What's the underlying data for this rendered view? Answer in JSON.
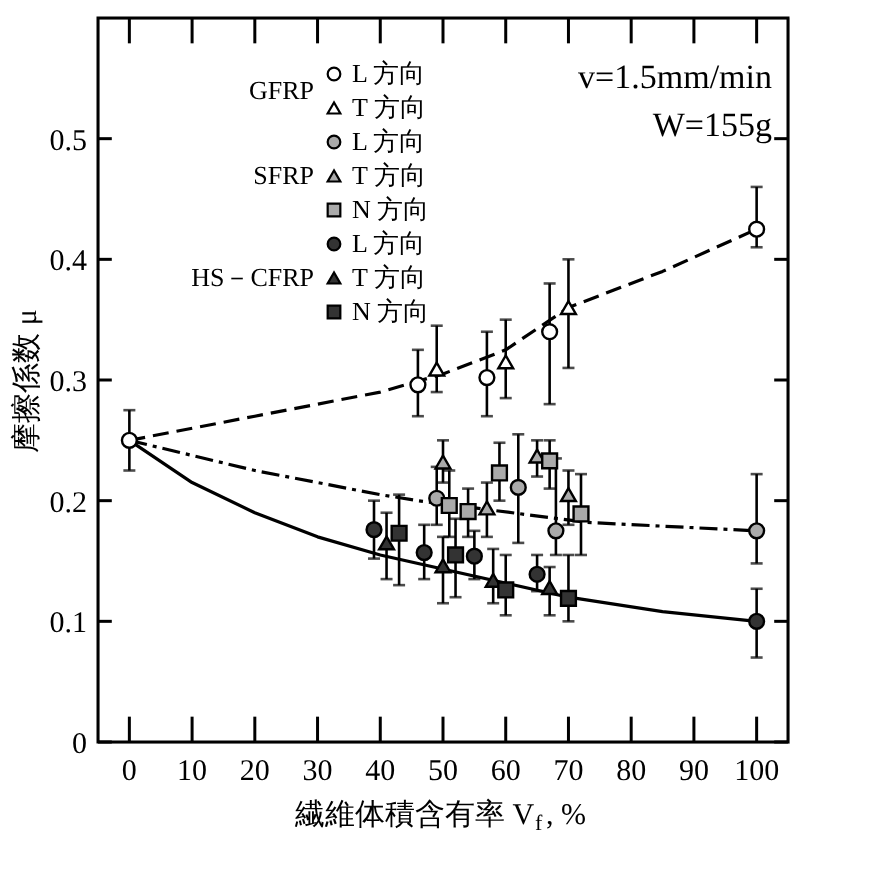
{
  "chart_data": {
    "type": "scatter",
    "xlabel": "繊維体積含有率 V$_{f}$, %",
    "ylabel": "摩擦係数 μ",
    "xlim": [
      -5,
      105
    ],
    "ylim": [
      0,
      0.6
    ],
    "xticks": [
      0,
      10,
      20,
      30,
      40,
      50,
      60,
      70,
      80,
      90,
      100
    ],
    "yticks": [
      0,
      0.1,
      0.2,
      0.3,
      0.4,
      0.5
    ],
    "grid": false,
    "legend": "top left",
    "annotations": [
      "GFRP",
      "SFRP",
      "HS－CFRP",
      "v=1.5mm/min",
      "W=155g"
    ],
    "series": [
      {
        "name": "L 方向",
        "color": "#ffffff",
        "marker": "circle",
        "x": [
          0,
          46,
          57,
          67,
          100
        ],
        "values": [
          0.25,
          0.296,
          0.302,
          0.34,
          0.425
        ],
        "errors": [
          [
            0.225,
            0.275
          ],
          [
            0.27,
            0.325
          ],
          [
            0.27,
            0.34
          ],
          [
            0.28,
            0.38
          ],
          [
            0.41,
            0.46
          ]
        ]
      },
      {
        "name": "T 方向",
        "color": "#ffffff",
        "marker": "triangle",
        "x": [
          49,
          60,
          70
        ],
        "values": [
          0.309,
          0.315,
          0.36
        ],
        "errors": [
          [
            0.29,
            0.345
          ],
          [
            0.285,
            0.35
          ],
          [
            0.31,
            0.4
          ]
        ]
      },
      {
        "name": "L 方向",
        "color": "#aaaaaa",
        "marker": "circle",
        "x": [
          49,
          62,
          68,
          100
        ],
        "values": [
          0.202,
          0.211,
          0.175,
          0.175
        ],
        "errors": [
          [
            0.18,
            0.228
          ],
          [
            0.165,
            0.255
          ],
          [
            0.155,
            0.235
          ],
          [
            0.148,
            0.222
          ]
        ]
      },
      {
        "name": "T 方向",
        "color": "#aaaaaa",
        "marker": "triangle",
        "x": [
          50,
          57,
          65,
          70
        ],
        "values": [
          0.232,
          0.194,
          0.237,
          0.205
        ],
        "errors": [
          [
            0.215,
            0.25
          ],
          [
            0.17,
            0.215
          ],
          [
            0.22,
            0.25
          ],
          [
            0.18,
            0.225
          ]
        ]
      },
      {
        "name": "N 方向",
        "color": "#aaaaaa",
        "marker": "square",
        "x": [
          51,
          54,
          59,
          67,
          72
        ],
        "values": [
          0.196,
          0.191,
          0.223,
          0.233,
          0.189
        ],
        "errors": [
          [
            0.17,
            0.225
          ],
          [
            0.17,
            0.21
          ],
          [
            0.2,
            0.248
          ],
          [
            0.21,
            0.25
          ],
          [
            0.155,
            0.222
          ]
        ]
      },
      {
        "name": "L 方向",
        "color": "#333333",
        "marker": "circle",
        "x": [
          39,
          47,
          55,
          65,
          100
        ],
        "values": [
          0.176,
          0.157,
          0.154,
          0.139,
          0.1
        ],
        "errors": [
          [
            0.152,
            0.2
          ],
          [
            0.135,
            0.18
          ],
          [
            0.135,
            0.175
          ],
          [
            0.125,
            0.155
          ],
          [
            0.07,
            0.127
          ]
        ]
      },
      {
        "name": "T 方向",
        "color": "#333333",
        "marker": "triangle",
        "x": [
          41,
          50,
          58,
          67
        ],
        "values": [
          0.165,
          0.146,
          0.134,
          0.128
        ],
        "errors": [
          [
            0.135,
            0.19
          ],
          [
            0.115,
            0.17
          ],
          [
            0.115,
            0.16
          ],
          [
            0.105,
            0.145
          ]
        ]
      },
      {
        "name": "N 方向",
        "color": "#333333",
        "marker": "square",
        "x": [
          43,
          52,
          60,
          70
        ],
        "values": [
          0.173,
          0.155,
          0.126,
          0.119
        ],
        "errors": [
          [
            0.13,
            0.205
          ],
          [
            0.12,
            0.185
          ],
          [
            0.105,
            0.155
          ],
          [
            0.1,
            0.155
          ]
        ]
      },
      {
        "type": "line",
        "color": "#000000",
        "line_style": "dashed",
        "x": [
          0,
          20,
          40,
          50,
          60,
          70,
          85,
          100
        ],
        "values": [
          0.25,
          0.27,
          0.29,
          0.305,
          0.325,
          0.36,
          0.39,
          0.425
        ]
      },
      {
        "type": "line",
        "color": "#000000",
        "line_style": "dotted",
        "x": [
          0,
          20,
          40,
          46,
          73,
          100
        ],
        "values": [
          0.25,
          0.225,
          0.205,
          0.2,
          0.182,
          0.175
        ]
      },
      {
        "type": "line",
        "color": "#000000",
        "line_style": "solid",
        "x": [
          0,
          10,
          20,
          30,
          40,
          70,
          85,
          100
        ],
        "values": [
          0.25,
          0.215,
          0.19,
          0.17,
          0.155,
          0.12,
          0.108,
          0.1
        ]
      }
    ]
  }
}
